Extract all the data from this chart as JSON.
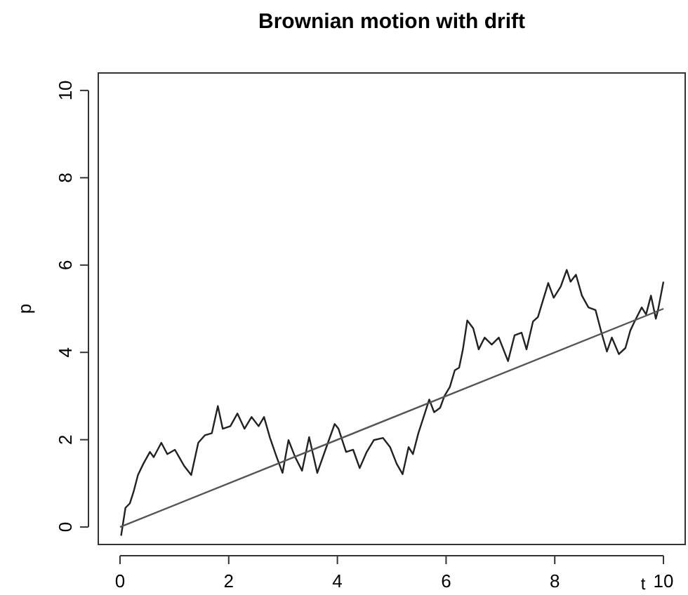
{
  "chart_data": {
    "type": "line",
    "title": "Brownian motion with drift",
    "xlabel": "t",
    "ylabel": "p",
    "xlim": [
      -0.4,
      10.4
    ],
    "ylim": [
      -0.4,
      10.4
    ],
    "xticks": [
      0,
      2,
      4,
      6,
      8,
      10
    ],
    "yticks": [
      0,
      2,
      4,
      6,
      8,
      10
    ],
    "grid": false,
    "marker": "none",
    "line_style": "solid",
    "series": [
      {
        "color": "#222222",
        "x": [
          0.02,
          0.1,
          0.18,
          0.25,
          0.33,
          0.43,
          0.55,
          0.62,
          0.76,
          0.87,
          1.01,
          1.18,
          1.31,
          1.44,
          1.56,
          1.69,
          1.8,
          1.89,
          2.03,
          2.16,
          2.29,
          2.42,
          2.55,
          2.65,
          2.76,
          2.88,
          2.99,
          3.1,
          3.22,
          3.35,
          3.48,
          3.63,
          3.78,
          3.95,
          4.02,
          4.16,
          4.29,
          4.41,
          4.54,
          4.67,
          4.84,
          4.97,
          5.09,
          5.2,
          5.31,
          5.39,
          5.49,
          5.6,
          5.69,
          5.78,
          5.89,
          5.97,
          6.07,
          6.16,
          6.24,
          6.31,
          6.39,
          6.5,
          6.6,
          6.71,
          6.84,
          6.97,
          7.14,
          7.26,
          7.39,
          7.48,
          7.6,
          7.69,
          7.77,
          7.88,
          7.98,
          8.11,
          8.22,
          8.29,
          8.39,
          8.5,
          8.62,
          8.75,
          8.86,
          8.96,
          9.05,
          9.18,
          9.3,
          9.39,
          9.47,
          9.6,
          9.68,
          9.77,
          9.86,
          9.9,
          10.0
        ],
        "values": [
          -0.2,
          0.44,
          0.54,
          0.81,
          1.19,
          1.45,
          1.72,
          1.6,
          1.93,
          1.67,
          1.77,
          1.4,
          1.19,
          1.93,
          2.1,
          2.15,
          2.77,
          2.25,
          2.31,
          2.6,
          2.25,
          2.52,
          2.31,
          2.52,
          2.04,
          1.61,
          1.24,
          1.99,
          1.61,
          1.29,
          2.06,
          1.24,
          1.77,
          2.36,
          2.25,
          1.72,
          1.77,
          1.35,
          1.72,
          1.99,
          2.04,
          1.83,
          1.45,
          1.21,
          1.83,
          1.67,
          2.15,
          2.57,
          2.92,
          2.63,
          2.73,
          3.0,
          3.21,
          3.59,
          3.65,
          4.07,
          4.73,
          4.55,
          4.07,
          4.34,
          4.18,
          4.34,
          3.8,
          4.39,
          4.45,
          4.07,
          4.71,
          4.81,
          5.14,
          5.59,
          5.25,
          5.51,
          5.89,
          5.62,
          5.78,
          5.3,
          5.03,
          4.97,
          4.45,
          4.02,
          4.34,
          3.96,
          4.1,
          4.5,
          4.71,
          5.03,
          4.87,
          5.3,
          4.77,
          4.97,
          5.62
        ]
      },
      {
        "color": "#555555",
        "x": [
          0,
          10
        ],
        "values": [
          0,
          5
        ]
      }
    ]
  }
}
